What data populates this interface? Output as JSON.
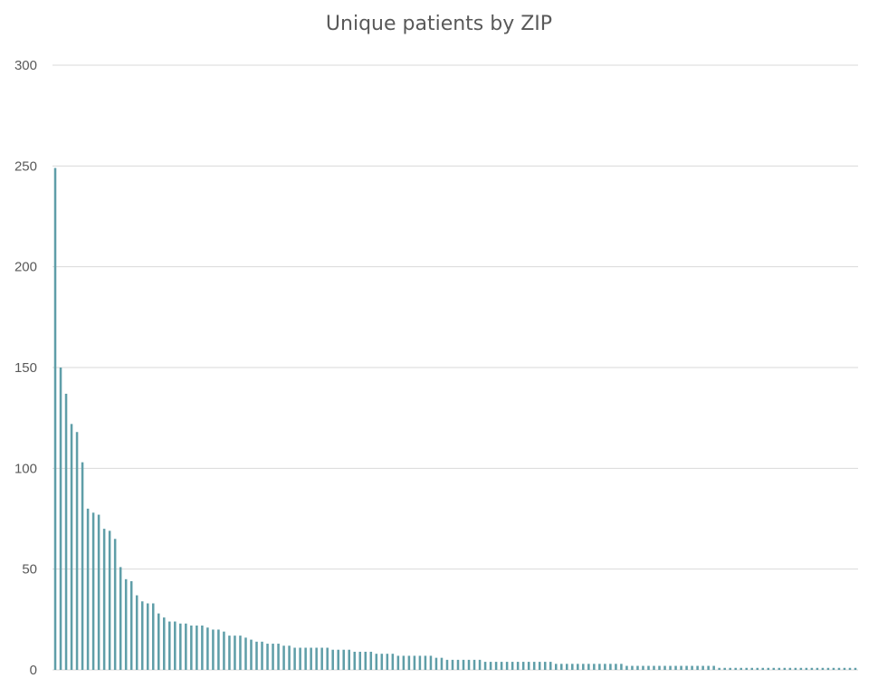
{
  "chart_data": {
    "type": "bar",
    "title": "Unique patients by ZIP",
    "xlabel": "",
    "ylabel": "",
    "ylim": [
      0,
      300
    ],
    "yticks": [
      0,
      50,
      100,
      150,
      200,
      250,
      300
    ],
    "grid": true,
    "legend": "none",
    "bar_color": "#5f9ea8",
    "values": [
      249,
      150,
      137,
      122,
      118,
      103,
      80,
      78,
      77,
      70,
      69,
      65,
      51,
      45,
      44,
      37,
      34,
      33,
      33,
      28,
      26,
      24,
      24,
      23,
      23,
      22,
      22,
      22,
      21,
      20,
      20,
      19,
      17,
      17,
      17,
      16,
      15,
      14,
      14,
      13,
      13,
      13,
      12,
      12,
      11,
      11,
      11,
      11,
      11,
      11,
      11,
      10,
      10,
      10,
      10,
      9,
      9,
      9,
      9,
      8,
      8,
      8,
      8,
      7,
      7,
      7,
      7,
      7,
      7,
      7,
      6,
      6,
      5,
      5,
      5,
      5,
      5,
      5,
      5,
      4,
      4,
      4,
      4,
      4,
      4,
      4,
      4,
      4,
      4,
      4,
      4,
      4,
      3,
      3,
      3,
      3,
      3,
      3,
      3,
      3,
      3,
      3,
      3,
      3,
      3,
      2,
      2,
      2,
      2,
      2,
      2,
      2,
      2,
      2,
      2,
      2,
      2,
      2,
      2,
      2,
      2,
      2,
      1,
      1,
      1,
      1,
      1,
      1,
      1,
      1,
      1,
      1,
      1,
      1,
      1,
      1,
      1,
      1,
      1,
      1,
      1,
      1,
      1,
      1,
      1,
      1,
      1,
      1
    ]
  }
}
